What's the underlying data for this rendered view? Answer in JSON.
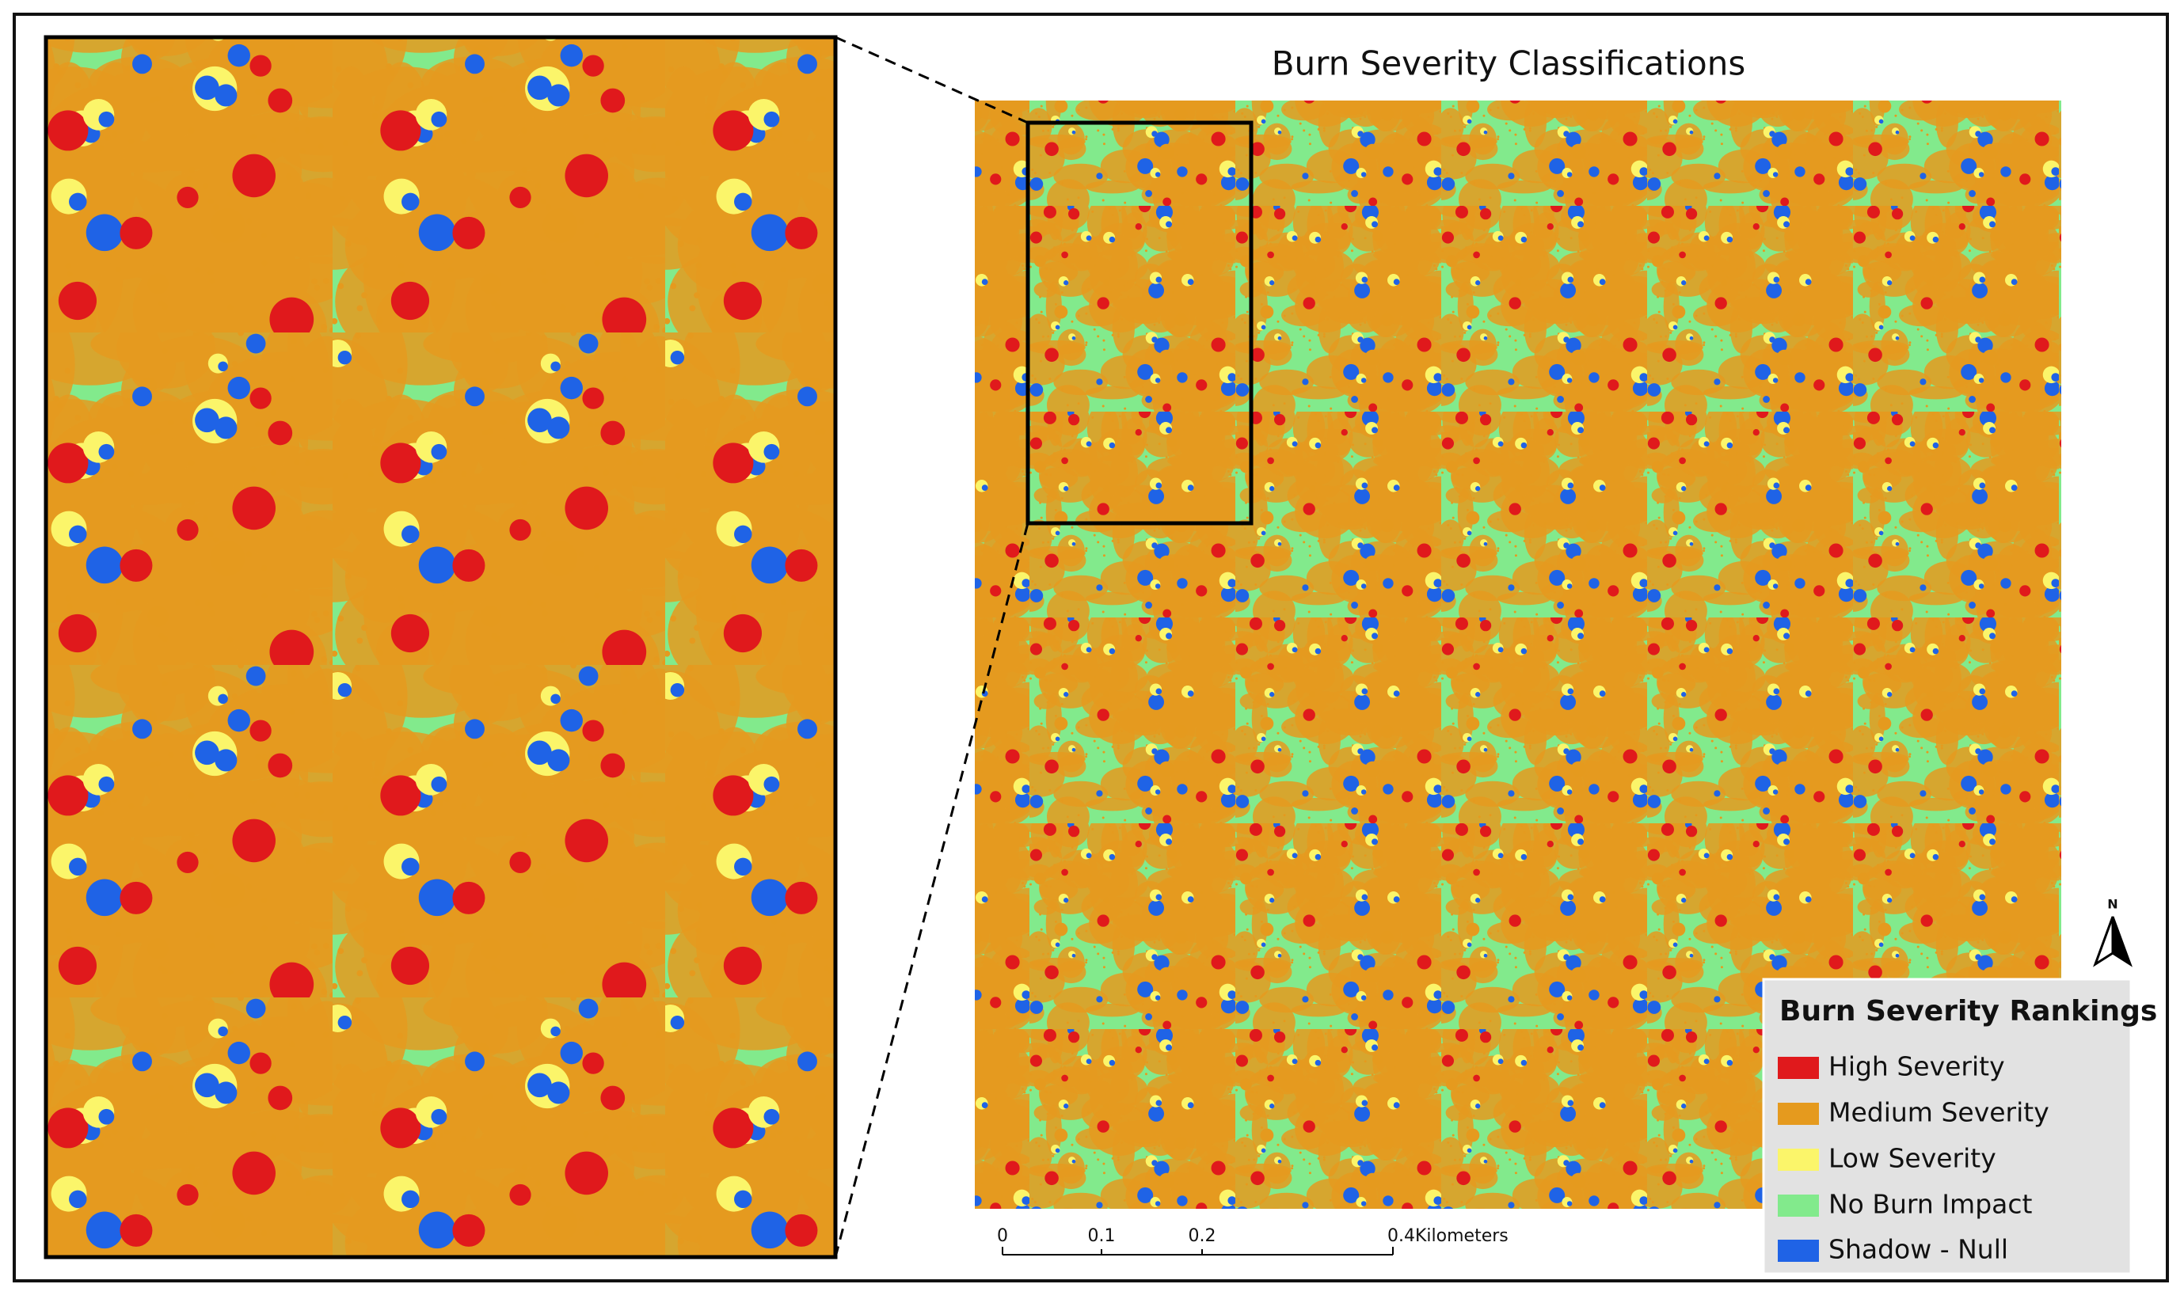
{
  "title": "Burn Severity Classifications",
  "legend": {
    "title": "Burn Severity Rankings",
    "items": [
      {
        "label": "High Severity",
        "color": "#e0191c"
      },
      {
        "label": "Medium Severity",
        "color": "#e59a1e"
      },
      {
        "label": "Low Severity",
        "color": "#fbf56a"
      },
      {
        "label": "No Burn Impact",
        "color": "#82ea8c"
      },
      {
        "label": "Shadow - Null",
        "color": "#1f63e6"
      }
    ]
  },
  "scale_bar": {
    "labels": [
      "0",
      "0.1",
      "0.2",
      "0.4Kilometers"
    ]
  },
  "north_arrow": {
    "label": "N"
  }
}
